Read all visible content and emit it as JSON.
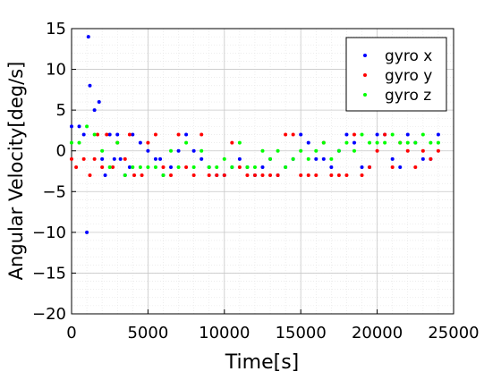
{
  "chart_data": {
    "type": "scatter",
    "xlabel": "Time[s]",
    "ylabel": "Angular Velocity[deg/s]",
    "xlim": [
      0,
      25000
    ],
    "ylim": [
      -20,
      15
    ],
    "xticks": [
      0,
      5000,
      10000,
      15000,
      20000,
      25000
    ],
    "yticks": [
      -20,
      -15,
      -10,
      -5,
      0,
      5,
      10,
      15
    ],
    "xtick_labels": [
      "0",
      "5000",
      "10000",
      "15000",
      "20000",
      "25000"
    ],
    "ytick_labels": [
      "−20",
      "−15",
      "−10",
      "−5",
      "0",
      "5",
      "10",
      "15"
    ],
    "grid": true,
    "minor_grid": true,
    "legend_position": "top-right",
    "series": [
      {
        "name": "gyro x",
        "color": "#0000ff",
        "x": [
          0,
          500,
          800,
          1000,
          1100,
          1200,
          1500,
          1800,
          2000,
          2200,
          2500,
          2800,
          3000,
          3200,
          3500,
          3800,
          4000,
          4500,
          5000,
          5500,
          5800,
          6000,
          6500,
          7000,
          7500,
          8000,
          8500,
          9000,
          9500,
          10000,
          10500,
          11000,
          11500,
          12000,
          12500,
          13000,
          13500,
          14000,
          14500,
          15000,
          15500,
          16000,
          16500,
          17000,
          17500,
          18000,
          18500,
          19000,
          19500,
          20000,
          20500,
          21000,
          21500,
          22000,
          22500,
          23000,
          23500,
          24000
        ],
        "y": [
          3,
          3,
          2,
          -10,
          14,
          8,
          5,
          6,
          -1,
          -3,
          2,
          -1,
          2,
          -1,
          -3,
          -2,
          2,
          1,
          0,
          -1,
          -1,
          -3,
          -2,
          0,
          2,
          0,
          -1,
          -2,
          -3,
          -3,
          -2,
          -1,
          -2,
          -3,
          -2,
          -1,
          -3,
          -2,
          -1,
          2,
          1,
          -1,
          -1,
          -2,
          0,
          2,
          1,
          -2,
          -2,
          2,
          2,
          -1,
          -2,
          2,
          1,
          -1,
          -1,
          2
        ]
      },
      {
        "name": "gyro y",
        "color": "#ff0000",
        "x": [
          0,
          300,
          800,
          1200,
          1500,
          1700,
          2000,
          2300,
          2700,
          3000,
          3500,
          3800,
          4100,
          4600,
          5000,
          5500,
          6000,
          6500,
          7000,
          7500,
          8000,
          8500,
          9000,
          9500,
          10000,
          10500,
          11000,
          11500,
          12000,
          12500,
          13000,
          13500,
          14000,
          14500,
          15000,
          15500,
          16000,
          16500,
          17000,
          17500,
          18000,
          18500,
          19000,
          19500,
          20000,
          20500,
          21000,
          21500,
          22000,
          22500,
          23000,
          23500,
          24000
        ],
        "y": [
          -1,
          -2,
          -1,
          -3,
          -1,
          2,
          -2,
          2,
          -2,
          1,
          -1,
          2,
          -3,
          -3,
          1,
          2,
          -2,
          -3,
          2,
          -2,
          -3,
          2,
          -3,
          -3,
          -3,
          1,
          -2,
          -3,
          -3,
          -3,
          -3,
          -3,
          2,
          2,
          -3,
          -3,
          -3,
          1,
          -3,
          -3,
          -3,
          2,
          -3,
          -2,
          0,
          2,
          -2,
          1,
          0,
          -2,
          0,
          -1,
          0
        ]
      },
      {
        "name": "gyro z",
        "color": "#00ff00",
        "x": [
          0,
          500,
          1000,
          1500,
          2000,
          2500,
          3000,
          3500,
          4000,
          4500,
          5000,
          5500,
          6000,
          6500,
          7000,
          7500,
          8000,
          8500,
          9000,
          9500,
          10000,
          10500,
          11000,
          11500,
          12000,
          12500,
          13000,
          13500,
          14000,
          14500,
          15000,
          15500,
          16000,
          16500,
          17000,
          17500,
          18000,
          18500,
          19000,
          19500,
          20000,
          20500,
          21000,
          21500,
          22000,
          22500,
          23000,
          23500,
          24000
        ],
        "y": [
          1,
          1,
          3,
          2,
          0,
          -2,
          1,
          -3,
          -2,
          -2,
          -2,
          -2,
          -3,
          0,
          -2,
          1,
          -2,
          0,
          -2,
          -2,
          -1,
          -2,
          1,
          -2,
          -2,
          0,
          -1,
          0,
          -2,
          -1,
          0,
          -1,
          0,
          1,
          -1,
          0,
          1,
          0,
          2,
          1,
          1,
          1,
          2,
          1,
          1,
          1,
          2,
          1,
          1
        ]
      }
    ]
  }
}
